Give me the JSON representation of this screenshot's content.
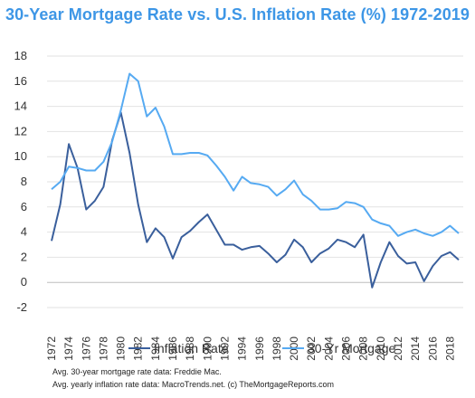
{
  "chart_data": {
    "type": "line",
    "title": "30-Year Mortgage Rate vs. U.S. Inflation Rate (%) 1972-2019",
    "xlabel": "",
    "ylabel": "",
    "ylim": [
      -2,
      18
    ],
    "yticks": [
      "-2",
      "0",
      "2",
      "4",
      "6",
      "8",
      "10",
      "12",
      "14",
      "16",
      "18"
    ],
    "x": [
      1972,
      1973,
      1974,
      1975,
      1976,
      1977,
      1978,
      1979,
      1980,
      1981,
      1982,
      1983,
      1984,
      1985,
      1986,
      1987,
      1988,
      1989,
      1990,
      1991,
      1992,
      1993,
      1994,
      1995,
      1996,
      1997,
      1998,
      1999,
      2000,
      2001,
      2002,
      2003,
      2004,
      2005,
      2006,
      2007,
      2008,
      2009,
      2010,
      2011,
      2012,
      2013,
      2014,
      2015,
      2016,
      2017,
      2018,
      2019
    ],
    "xtick_labels": [
      "1972",
      "1974",
      "1976",
      "1978",
      "1980",
      "1982",
      "1984",
      "1986",
      "1988",
      "1990",
      "1992",
      "1994",
      "1996",
      "1998",
      "2000",
      "2002",
      "2004",
      "2006",
      "2008",
      "2010",
      "2012",
      "2014",
      "2016",
      "2018"
    ],
    "grid": "horizontal",
    "legend_position": "bottom",
    "series": [
      {
        "name": "Inflation Rate",
        "color": "#3a5f9c",
        "values": [
          3.3,
          6.2,
          11.0,
          9.1,
          5.8,
          6.5,
          7.6,
          11.3,
          13.5,
          10.3,
          6.2,
          3.2,
          4.3,
          3.6,
          1.9,
          3.6,
          4.1,
          4.8,
          5.4,
          4.2,
          3.0,
          3.0,
          2.6,
          2.8,
          2.9,
          2.3,
          1.6,
          2.2,
          3.4,
          2.8,
          1.6,
          2.3,
          2.7,
          3.4,
          3.2,
          2.8,
          3.8,
          -0.4,
          1.6,
          3.2,
          2.1,
          1.5,
          1.6,
          0.1,
          1.3,
          2.1,
          2.4,
          1.8
        ]
      },
      {
        "name": "30-Yr Mortgage",
        "color": "#56aaf2",
        "values": [
          7.4,
          8.0,
          9.2,
          9.1,
          8.9,
          8.9,
          9.6,
          11.2,
          13.7,
          16.6,
          16.0,
          13.2,
          13.9,
          12.4,
          10.2,
          10.2,
          10.3,
          10.3,
          10.1,
          9.3,
          8.4,
          7.3,
          8.4,
          7.9,
          7.8,
          7.6,
          6.9,
          7.4,
          8.1,
          7.0,
          6.5,
          5.8,
          5.8,
          5.9,
          6.4,
          6.3,
          6.0,
          5.0,
          4.7,
          4.5,
          3.7,
          4.0,
          4.2,
          3.9,
          3.7,
          4.0,
          4.5,
          3.9
        ]
      }
    ]
  },
  "source": {
    "line1": "Avg. 30-year mortgage rate data: Freddie Mac.",
    "line2": "Avg. yearly inflation rate data: MacroTrends.net. (c) TheMortgageReports.com"
  }
}
